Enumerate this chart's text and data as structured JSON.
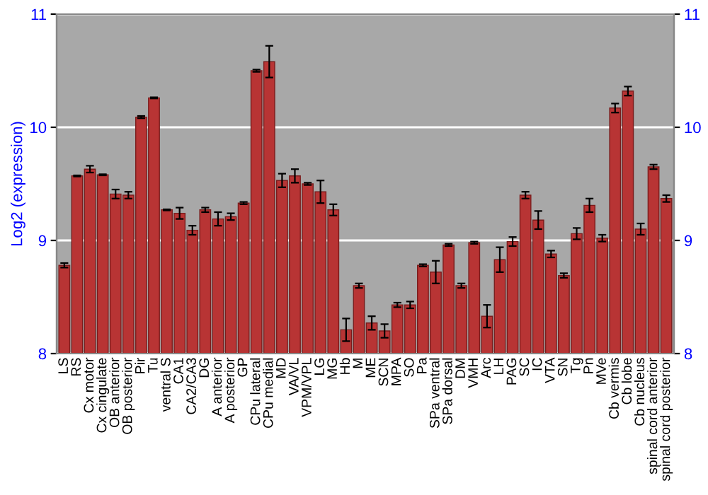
{
  "chart_data": {
    "type": "bar",
    "ylabel": "Log2 (expression)",
    "categories": [
      "LS",
      "RS",
      "Cx motor",
      "Cx cingulate",
      "OB anterior",
      "OB posterior",
      "Pir",
      "Tu",
      "ventral S",
      "CA1",
      "CA2/CA3",
      "DG",
      "A anterior",
      "A posterior",
      "GP",
      "CPu lateral",
      "CPu medial",
      "MD",
      "VA/VL",
      "VPM/VPL",
      "LG",
      "MG",
      "Hb",
      "M",
      "ME",
      "SCN",
      "MPA",
      "SO",
      "Pa",
      "SPa ventral",
      "SPa dorsal",
      "DM",
      "VMH",
      "Arc",
      "LH",
      "PAG",
      "SC",
      "IC",
      "VTA",
      "SN",
      "Tg",
      "Pn",
      "MVe",
      "Cb vermis",
      "Cb lobe",
      "Cb nucleus",
      "spinal cord anterior",
      "spinal cord posterior"
    ],
    "values": [
      8.78,
      9.57,
      9.63,
      9.58,
      9.41,
      9.4,
      10.09,
      10.26,
      9.27,
      9.24,
      9.09,
      9.27,
      9.19,
      9.21,
      9.33,
      10.5,
      10.58,
      9.53,
      9.57,
      9.5,
      9.43,
      9.27,
      8.21,
      8.6,
      8.27,
      8.2,
      8.43,
      8.43,
      8.78,
      8.72,
      8.96,
      8.6,
      8.98,
      8.33,
      8.83,
      8.99,
      9.4,
      9.18,
      8.88,
      8.69,
      9.06,
      9.31,
      9.02,
      10.17,
      10.32,
      9.1,
      9.65,
      9.37
    ],
    "errors": [
      0.02,
      0.005,
      0.03,
      0.005,
      0.04,
      0.03,
      0.01,
      0.005,
      0.005,
      0.05,
      0.04,
      0.02,
      0.06,
      0.03,
      0.01,
      0.01,
      0.14,
      0.06,
      0.06,
      0.01,
      0.1,
      0.05,
      0.1,
      0.02,
      0.06,
      0.06,
      0.02,
      0.03,
      0.01,
      0.1,
      0.01,
      0.02,
      0.01,
      0.1,
      0.11,
      0.04,
      0.03,
      0.08,
      0.03,
      0.02,
      0.05,
      0.06,
      0.03,
      0.04,
      0.04,
      0.05,
      0.02,
      0.03
    ],
    "color": "#b83434",
    "ylim": [
      8,
      11
    ],
    "yticks": [
      8,
      9,
      10,
      11
    ],
    "y2lim": [
      8,
      11
    ],
    "y2ticks": [
      8,
      9,
      10,
      11
    ],
    "grid": "y"
  }
}
